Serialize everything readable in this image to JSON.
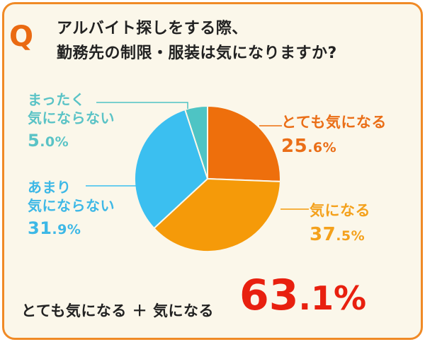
{
  "header": {
    "q_mark": "Q",
    "question_line1": "アルバイト探しをする際、",
    "question_line2": "勤務先の制限・服装は気になりますか?"
  },
  "chart_data": {
    "type": "pie",
    "start_angle_deg": 0,
    "direction": "clockwise",
    "slices": [
      {
        "label": "とても気になる",
        "value": 25.6,
        "display_int": "25",
        "display_dec": ".6%",
        "color": "#ee6f0c"
      },
      {
        "label": "気になる",
        "value": 37.5,
        "display_int": "37",
        "display_dec": ".5%",
        "color": "#f59a09"
      },
      {
        "label_line1": "あまり",
        "label_line2": "気にならない",
        "value": 31.9,
        "display_int": "31",
        "display_dec": ".9%",
        "color": "#3bbff0"
      },
      {
        "label_line1": "まったく",
        "label_line2": "気にならない",
        "value": 5.0,
        "display_int": "5",
        "display_dec": ".0%",
        "color": "#4ec4c4"
      }
    ]
  },
  "summary": {
    "text": "とても気になる ＋ 気になる",
    "value_int": "63",
    "value_dec": ".1%",
    "value": 63.1
  },
  "colors": {
    "border": "#f08a26",
    "background": "#fbf7ea",
    "accent_red": "#e8200f"
  }
}
